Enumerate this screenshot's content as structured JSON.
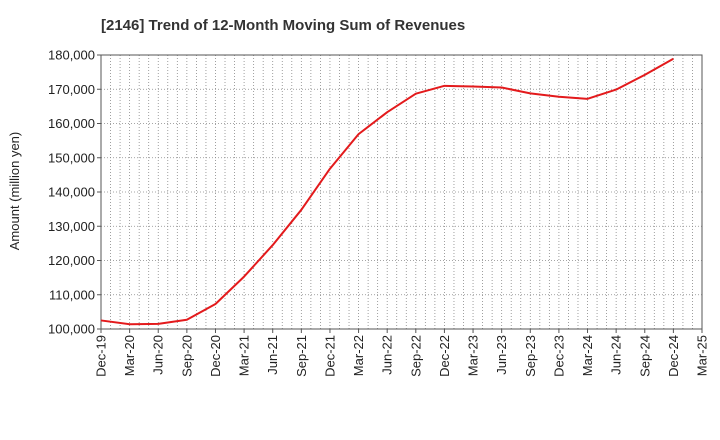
{
  "chart_data": {
    "type": "line",
    "title": "[2146]  Trend of 12-Month Moving Sum of Revenues",
    "xlabel": "",
    "ylabel": "Amount (million yen)",
    "ylim": [
      100000,
      180000
    ],
    "yticks": [
      100000,
      110000,
      120000,
      130000,
      140000,
      150000,
      160000,
      170000,
      180000
    ],
    "ytick_labels": [
      "100,000",
      "110,000",
      "120,000",
      "130,000",
      "140,000",
      "150,000",
      "160,000",
      "170,000",
      "180,000"
    ],
    "x_tick_labels": [
      "Dec-19",
      "Mar-20",
      "Jun-20",
      "Sep-20",
      "Dec-20",
      "Mar-21",
      "Jun-21",
      "Sep-21",
      "Dec-21",
      "Mar-22",
      "Jun-22",
      "Sep-22",
      "Dec-22",
      "Mar-23",
      "Jun-23",
      "Sep-23",
      "Dec-23",
      "Mar-24",
      "Jun-24",
      "Sep-24",
      "Dec-24",
      "Mar-25"
    ],
    "grid": true,
    "series": [
      {
        "color": "#e31a1c",
        "x": [
          "Dec-19",
          "Mar-20",
          "Jun-20",
          "Sep-20",
          "Dec-20",
          "Mar-21",
          "Jun-21",
          "Sep-21",
          "Dec-21",
          "Mar-22",
          "Jun-22",
          "Sep-22",
          "Dec-22",
          "Mar-23",
          "Jun-23",
          "Sep-23",
          "Dec-23",
          "Mar-24",
          "Jun-24",
          "Sep-24",
          "Dec-24"
        ],
        "values": [
          102500,
          101400,
          101500,
          102700,
          107300,
          115300,
          124500,
          134800,
          146800,
          156900,
          163300,
          168700,
          171000,
          170800,
          170500,
          168800,
          167800,
          167200,
          169900,
          174200,
          178900
        ]
      }
    ]
  }
}
